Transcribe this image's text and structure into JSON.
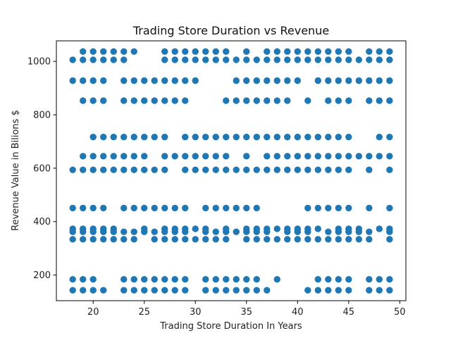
{
  "chart_data": {
    "type": "scatter",
    "title": "Trading Store Duration vs Revenue",
    "xlabel": "Trading Store Duration In Years",
    "ylabel": "Revenue Value in Bilions $",
    "xlim": [
      16.4,
      50.6
    ],
    "ylim": [
      104,
      1077
    ],
    "xticks": [
      20,
      25,
      30,
      35,
      40,
      45,
      50
    ],
    "yticks": [
      200,
      400,
      600,
      800,
      1000
    ],
    "x_tick_labels": [
      "20",
      "25",
      "30",
      "35",
      "40",
      "45",
      "50"
    ],
    "y_tick_labels": [
      "200",
      "400",
      "600",
      "800",
      "1000"
    ],
    "marker_color": "#1f77b4",
    "grid": false,
    "points": [
      {
        "y": 1037,
        "x": [
          19,
          20,
          21,
          22,
          23,
          24,
          27,
          28,
          29,
          30,
          31,
          32,
          33,
          35,
          37,
          38,
          39,
          40,
          41,
          42,
          43,
          44,
          45,
          47,
          48,
          49
        ]
      },
      {
        "y": 1006,
        "x": [
          18,
          19,
          20,
          21,
          22,
          23,
          27,
          28,
          29,
          30,
          31,
          32,
          33,
          34,
          35,
          36,
          37,
          38,
          39,
          40,
          41,
          42,
          43,
          44,
          45,
          46,
          47,
          48,
          49
        ]
      },
      {
        "y": 928,
        "x": [
          18,
          19,
          20,
          21,
          23,
          24,
          25,
          26,
          27,
          28,
          29,
          30,
          34,
          35,
          36,
          37,
          38,
          39,
          40,
          42,
          43,
          44,
          45,
          46,
          47,
          48,
          49
        ]
      },
      {
        "y": 853,
        "x": [
          19,
          20,
          21,
          23,
          24,
          25,
          26,
          27,
          28,
          29,
          33,
          34,
          35,
          36,
          37,
          38,
          39,
          41,
          43,
          44,
          45,
          47,
          48,
          49
        ]
      },
      {
        "y": 717,
        "x": [
          20,
          21,
          22,
          23,
          24,
          25,
          26,
          27,
          29,
          30,
          31,
          32,
          33,
          34,
          35,
          36,
          37,
          38,
          39,
          40,
          41,
          42,
          43,
          44,
          45,
          48,
          49
        ]
      },
      {
        "y": 645,
        "x": [
          19,
          20,
          21,
          22,
          23,
          24,
          25,
          27,
          28,
          29,
          30,
          31,
          32,
          33,
          35,
          37,
          38,
          39,
          40,
          41,
          42,
          43,
          44,
          45,
          46,
          47,
          48,
          49
        ]
      },
      {
        "y": 594,
        "x": [
          18,
          19,
          20,
          21,
          22,
          23,
          24,
          25,
          26,
          27,
          29,
          30,
          31,
          32,
          33,
          34,
          35,
          36,
          37,
          38,
          39,
          40,
          41,
          42,
          43,
          44,
          45,
          47,
          49
        ]
      },
      {
        "y": 451,
        "x": [
          18,
          19,
          20,
          21,
          23,
          24,
          25,
          26,
          27,
          28,
          29,
          31,
          32,
          33,
          34,
          35,
          36,
          41,
          42,
          43,
          44,
          45,
          47,
          49
        ]
      },
      {
        "y": 373,
        "x": [
          18,
          19,
          20,
          21,
          22,
          25,
          27,
          28,
          29,
          30,
          31,
          33,
          35,
          36,
          37,
          38,
          39,
          40,
          41,
          42,
          44,
          45,
          46,
          48,
          49
        ]
      },
      {
        "y": 362,
        "x": [
          18,
          19,
          20,
          21,
          22,
          23,
          24,
          25,
          26,
          27,
          28,
          29,
          31,
          32,
          33,
          34,
          35,
          36,
          37,
          39,
          40,
          41,
          43,
          44,
          45,
          46,
          47,
          49
        ]
      },
      {
        "y": 334,
        "x": [
          18,
          19,
          20,
          21,
          22,
          23,
          24,
          26,
          27,
          28,
          29,
          30,
          31,
          32,
          33,
          35,
          36,
          37,
          38,
          39,
          40,
          41,
          42,
          43,
          44,
          45,
          46,
          47,
          49
        ]
      },
      {
        "y": 184,
        "x": [
          18,
          19,
          20,
          23,
          24,
          25,
          26,
          27,
          28,
          29,
          31,
          32,
          33,
          34,
          35,
          36,
          38,
          42,
          43,
          44,
          45,
          47,
          48,
          49
        ]
      },
      {
        "y": 143,
        "x": [
          18,
          19,
          20,
          21,
          23,
          24,
          25,
          26,
          27,
          28,
          29,
          31,
          32,
          33,
          34,
          35,
          36,
          37,
          41,
          42,
          43,
          44,
          45,
          47,
          48,
          49
        ]
      }
    ]
  }
}
